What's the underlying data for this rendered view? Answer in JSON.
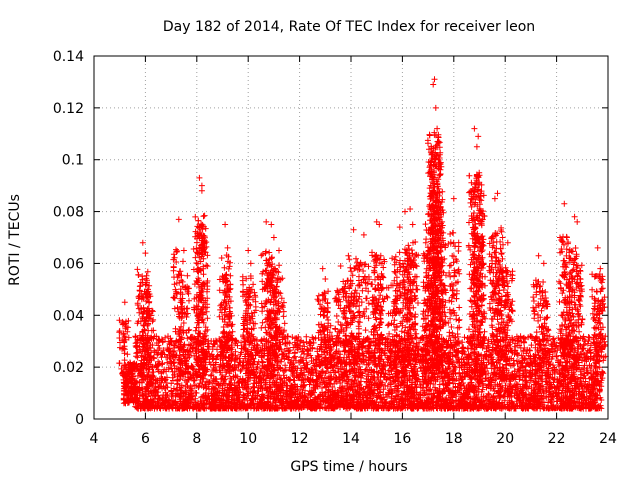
{
  "chart_data": {
    "type": "scatter",
    "title": "Day 182 of 2014, Rate Of TEC Index for receiver leon",
    "xlabel": "GPS time / hours",
    "ylabel": "ROTI / TECUs",
    "xlim": [
      4,
      24
    ],
    "ylim": [
      0,
      0.14
    ],
    "xticks": [
      4,
      6,
      8,
      10,
      12,
      14,
      16,
      18,
      20,
      22,
      24
    ],
    "yticks": [
      0,
      0.02,
      0.04,
      0.06,
      0.08,
      0.1,
      0.12,
      0.14
    ],
    "xtick_labels": [
      "4",
      "6",
      "8",
      "10",
      "12",
      "14",
      "16",
      "18",
      "20",
      "22",
      "24"
    ],
    "ytick_labels": [
      "0",
      "0.02",
      "0.04",
      "0.06",
      "0.08",
      "0.1",
      "0.12",
      "0.14"
    ],
    "grid": true,
    "marker": "+",
    "color": "#ff0000",
    "series": [
      {
        "name": "ROTI",
        "note": "dense cloud of points; representative peak/outlier values listed, remaining baseline points between 0.002 and 0.035",
        "x": [
          5.2,
          5.3,
          5.9,
          6.0,
          6.1,
          7.3,
          7.5,
          8.1,
          8.2,
          8.2,
          9.1,
          9.2,
          10.0,
          10.1,
          10.7,
          10.9,
          11.0,
          11.2,
          12.9,
          13.0,
          13.6,
          13.9,
          14.1,
          14.5,
          15.0,
          15.1,
          15.6,
          15.9,
          16.1,
          16.3,
          16.4,
          17.0,
          17.1,
          17.2,
          17.25,
          17.3,
          17.35,
          17.4,
          17.5,
          18.0,
          18.8,
          18.9,
          18.95,
          19.0,
          19.6,
          19.7,
          19.9,
          20.1,
          21.3,
          21.5,
          22.3,
          22.4,
          22.7,
          22.8,
          23.6,
          23.7
        ],
        "y": [
          0.045,
          0.025,
          0.068,
          0.064,
          0.05,
          0.077,
          0.065,
          0.093,
          0.09,
          0.088,
          0.075,
          0.066,
          0.065,
          0.06,
          0.076,
          0.075,
          0.07,
          0.065,
          0.058,
          0.054,
          0.059,
          0.063,
          0.073,
          0.071,
          0.076,
          0.075,
          0.062,
          0.074,
          0.08,
          0.081,
          0.075,
          0.079,
          0.09,
          0.129,
          0.131,
          0.12,
          0.112,
          0.1,
          0.079,
          0.085,
          0.112,
          0.105,
          0.109,
          0.094,
          0.085,
          0.087,
          0.07,
          0.068,
          0.063,
          0.06,
          0.083,
          0.07,
          0.078,
          0.076,
          0.066,
          0.058
        ]
      }
    ]
  }
}
